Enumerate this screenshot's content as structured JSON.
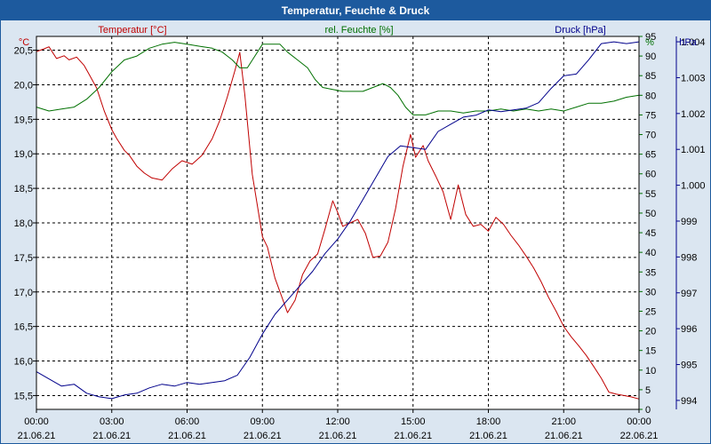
{
  "chart_data": {
    "type": "line",
    "title": "Temperatur, Feuchte & Druck",
    "x_ticks": [
      {
        "time": "00:00",
        "date": "21.06.21"
      },
      {
        "time": "03:00",
        "date": "21.06.21"
      },
      {
        "time": "06:00",
        "date": "21.06.21"
      },
      {
        "time": "09:00",
        "date": "21.06.21"
      },
      {
        "time": "12:00",
        "date": "21.06.21"
      },
      {
        "time": "15:00",
        "date": "21.06.21"
      },
      {
        "time": "18:00",
        "date": "21.06.21"
      },
      {
        "time": "21:00",
        "date": "21.06.21"
      },
      {
        "time": "00:00",
        "date": "22.06.21"
      }
    ],
    "xlim": [
      0,
      24
    ],
    "axes": {
      "temperature": {
        "label": "Temperatur [°C]",
        "unit": "°C",
        "min": 15.5,
        "max": 20.5,
        "step": 0.5,
        "ylim": [
          15.3,
          20.7
        ],
        "color": "#c00000",
        "ticks": [
          "15,5",
          "16,0",
          "16,5",
          "17,0",
          "17,5",
          "18,0",
          "18,5",
          "19,0",
          "19,5",
          "20,0",
          "20,5"
        ]
      },
      "humidity": {
        "label": "rel. Feuchte [%]",
        "unit": "%",
        "min": 0,
        "max": 95,
        "step": 5,
        "ylim": [
          0,
          95
        ],
        "color": "#007000",
        "ticks": [
          "0",
          "5",
          "10",
          "15",
          "20",
          "25",
          "30",
          "35",
          "40",
          "45",
          "50",
          "55",
          "60",
          "65",
          "70",
          "75",
          "80",
          "85",
          "90",
          "95"
        ]
      },
      "pressure": {
        "label": "Druck [hPa]",
        "unit": "hPa",
        "min": 994,
        "max": 1004,
        "step": 1,
        "ylim": [
          993.75,
          1004.15
        ],
        "color": "#00008b",
        "ticks": [
          "994",
          "995",
          "996",
          "997",
          "998",
          "999",
          "1.000",
          "1.001",
          "1.002",
          "1.003",
          "1.004"
        ]
      }
    },
    "series": [
      {
        "name": "Temperatur",
        "axis": "temperature",
        "color": "#c00000",
        "x": [
          0,
          0.3,
          0.5,
          0.8,
          1.1,
          1.3,
          1.6,
          1.9,
          2.1,
          2.4,
          2.7,
          3.0,
          3.2,
          3.5,
          3.7,
          4.0,
          4.3,
          4.6,
          5.0,
          5.4,
          5.8,
          6.2,
          6.6,
          7.0,
          7.3,
          7.6,
          7.9,
          8.1,
          8.3,
          8.6,
          9.0,
          9.2,
          9.5,
          9.8,
          10.0,
          10.3,
          10.6,
          10.9,
          11.2,
          11.5,
          11.8,
          12.0,
          12.2,
          12.5,
          12.8,
          13.1,
          13.4,
          13.7,
          14.0,
          14.3,
          14.6,
          14.9,
          15.1,
          15.4,
          15.6,
          15.9,
          16.2,
          16.5,
          16.8,
          17.1,
          17.4,
          17.7,
          18.0,
          18.3,
          18.6,
          18.9,
          19.2,
          19.5,
          19.8,
          20.1,
          20.4,
          20.7,
          21.0,
          21.3,
          21.6,
          21.9,
          22.2,
          22.5,
          22.8,
          23.1,
          23.4,
          23.7,
          24.0
        ],
        "values": [
          20.48,
          20.52,
          20.55,
          20.38,
          20.42,
          20.36,
          20.4,
          20.28,
          20.15,
          19.95,
          19.62,
          19.35,
          19.22,
          19.05,
          18.98,
          18.82,
          18.72,
          18.65,
          18.62,
          18.78,
          18.9,
          18.85,
          18.98,
          19.22,
          19.48,
          19.82,
          20.2,
          20.47,
          19.85,
          18.7,
          17.8,
          17.65,
          17.2,
          16.9,
          16.7,
          16.88,
          17.25,
          17.45,
          17.55,
          17.92,
          18.32,
          18.15,
          17.95,
          18.0,
          18.05,
          17.85,
          17.5,
          17.52,
          17.72,
          18.2,
          18.82,
          19.28,
          18.95,
          19.12,
          18.9,
          18.68,
          18.45,
          18.05,
          18.55,
          18.12,
          17.95,
          17.98,
          17.88,
          18.08,
          17.98,
          17.82,
          17.68,
          17.52,
          17.35,
          17.15,
          16.92,
          16.72,
          16.5,
          16.35,
          16.22,
          16.08,
          15.92,
          15.75,
          15.55,
          15.52,
          15.5,
          15.48,
          15.45
        ]
      },
      {
        "name": "rel. Feuchte",
        "axis": "humidity",
        "color": "#007000",
        "x": [
          0,
          0.5,
          1.0,
          1.5,
          2.0,
          2.5,
          3.0,
          3.5,
          4.0,
          4.5,
          5.0,
          5.5,
          6.0,
          6.5,
          7.0,
          7.4,
          7.8,
          8.1,
          8.4,
          8.7,
          9.0,
          9.3,
          9.7,
          10.0,
          10.4,
          10.8,
          11.1,
          11.4,
          11.8,
          12.2,
          12.6,
          13.0,
          13.4,
          13.8,
          14.1,
          14.4,
          14.7,
          15.0,
          15.5,
          16.0,
          16.5,
          17.0,
          17.5,
          18.0,
          18.5,
          19.0,
          19.5,
          20.0,
          20.5,
          21.0,
          21.5,
          22.0,
          22.5,
          23.0,
          23.5,
          24.0
        ],
        "values": [
          77,
          76,
          76.5,
          77,
          79,
          82,
          86,
          89,
          90,
          92,
          93,
          93.5,
          93,
          92.5,
          92,
          91,
          89,
          87,
          87,
          90,
          93,
          93,
          93,
          91,
          89,
          87,
          84,
          82,
          81.5,
          81,
          81,
          81,
          82,
          83,
          82,
          80,
          77,
          75,
          75,
          76,
          76,
          75.5,
          76,
          76,
          76.5,
          76,
          76.5,
          76,
          76.5,
          76,
          77,
          78,
          78,
          78.5,
          79.5,
          80
        ]
      },
      {
        "name": "Druck",
        "axis": "pressure",
        "color": "#00008b",
        "x": [
          0,
          0.5,
          1.0,
          1.5,
          2.0,
          2.5,
          3.0,
          3.5,
          4.0,
          4.5,
          5.0,
          5.5,
          6.0,
          6.5,
          7.0,
          7.5,
          8.0,
          8.5,
          9.0,
          9.5,
          10.0,
          10.5,
          11.0,
          11.5,
          12.0,
          12.5,
          13.0,
          13.5,
          14.0,
          14.5,
          15.0,
          15.5,
          16.0,
          16.5,
          17.0,
          17.5,
          18.0,
          18.5,
          19.0,
          19.5,
          20.0,
          20.5,
          21.0,
          21.5,
          22.0,
          22.5,
          23.0,
          23.5,
          24.0
        ],
        "values": [
          994.8,
          994.6,
          994.4,
          994.45,
          994.2,
          994.1,
          994.05,
          994.15,
          994.2,
          994.35,
          994.45,
          994.4,
          994.5,
          994.45,
          994.5,
          994.55,
          994.7,
          995.2,
          995.85,
          996.4,
          996.8,
          997.2,
          997.6,
          998.1,
          998.5,
          999.0,
          999.6,
          1000.2,
          1000.8,
          1001.1,
          1001.05,
          1001.0,
          1001.5,
          1001.7,
          1001.9,
          1001.95,
          1002.1,
          1002.05,
          1002.1,
          1002.15,
          1002.3,
          1002.7,
          1003.05,
          1003.1,
          1003.5,
          1003.95,
          1004.0,
          1003.95,
          1004.0
        ]
      }
    ]
  }
}
